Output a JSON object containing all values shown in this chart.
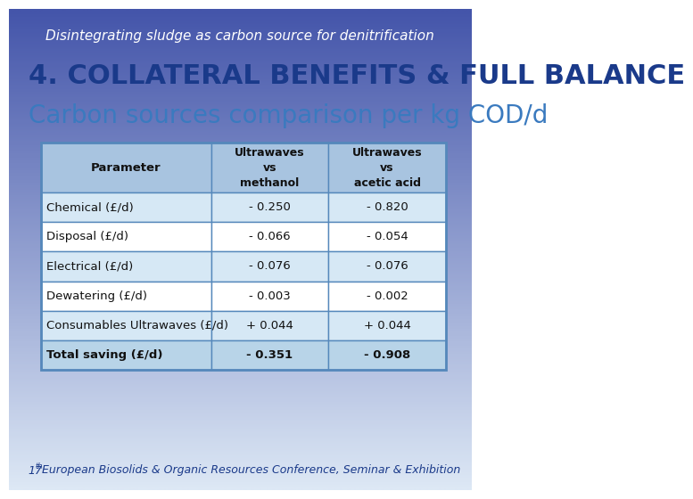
{
  "title_italic": "Disintegrating sludge as carbon source for denitrification",
  "heading": "4. COLLATERAL BENEFITS & FULL BALANCE",
  "subheading": "Carbon sources comparison per kg COD/d",
  "footer": "17th European Biosolids & Organic Resources Conference, Seminar & Exhibition",
  "footer_superscript": "th",
  "col_headers": [
    "Parameter",
    "Ultrawaves\nvs\nmethanol",
    "Ultrawaves\nvs\nacetic acid"
  ],
  "rows": [
    [
      "Chemical (£/d)",
      "- 0.250",
      "- 0.820"
    ],
    [
      "Disposal (£/d)",
      "- 0.066",
      "- 0.054"
    ],
    [
      "Electrical (£/d)",
      "- 0.076",
      "- 0.076"
    ],
    [
      "Dewatering (£/d)",
      "- 0.003",
      "- 0.002"
    ],
    [
      "Consumables Ultrawaves (£/d)",
      "+ 0.044",
      "+ 0.044"
    ],
    [
      "Total saving (£/d)",
      "- 0.351",
      "- 0.908"
    ]
  ],
  "bg_gradient_top": "#4455aa",
  "bg_gradient_bottom": "#dde8f5",
  "table_header_bg": "#a8c4e0",
  "table_row_alt_bg": "#d6e8f5",
  "table_row_bg": "#ffffff",
  "table_last_row_bg": "#b8d4e8",
  "table_border_color": "#5588bb",
  "heading_color": "#1a3a8a",
  "subheading_color": "#3a7abf",
  "title_color": "#ffffff",
  "footer_color": "#1a3a8a"
}
